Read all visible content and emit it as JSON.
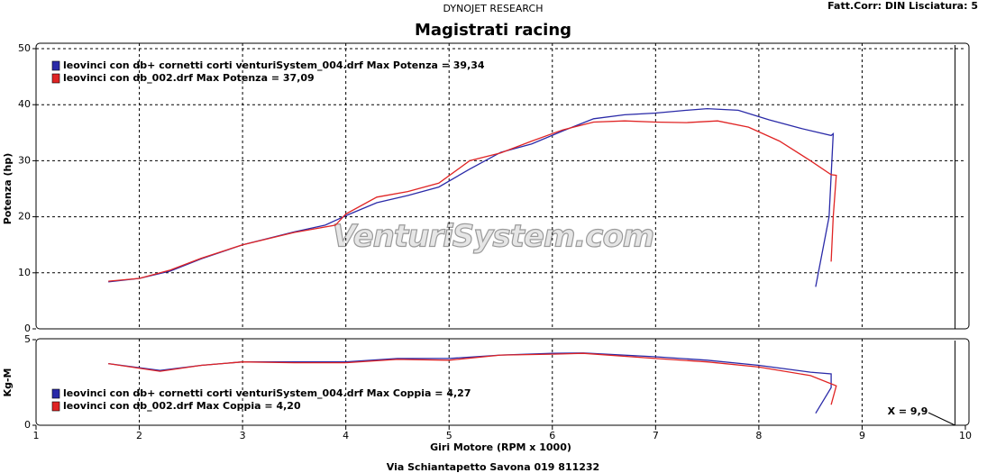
{
  "header": {
    "brand": "DYNOJET RESEARCH",
    "settings": "Fatt.Corr: DIN  Lisciatura: 5",
    "footer": "Via Schiantapetto Savona  019 811232",
    "watermark": "VenturiSystem.com"
  },
  "chart_data": [
    {
      "type": "line",
      "title": "Magistrati racing",
      "y_label": "Potenza (hp)",
      "xlim": [
        1,
        10
      ],
      "xticks": [
        1,
        2,
        3,
        4,
        5,
        6,
        7,
        8,
        9,
        10
      ],
      "ylim": [
        0,
        50
      ],
      "yticks": [
        0,
        10,
        20,
        30,
        40,
        50
      ],
      "grid": true,
      "legend": "upper-left",
      "series": [
        {
          "name": "leovinci con db+ cornetti corti venturiSystem_004.drf Max Potenza = 39,34",
          "color": "#2a2aa8",
          "x": [
            1.7,
            2.0,
            2.3,
            2.6,
            3.0,
            3.5,
            3.8,
            4.0,
            4.3,
            4.6,
            4.9,
            5.2,
            5.5,
            5.8,
            6.1,
            6.4,
            6.7,
            7.0,
            7.3,
            7.5,
            7.8,
            8.1,
            8.4,
            8.7,
            8.72,
            8.68,
            8.55
          ],
          "values": [
            8.4,
            9.0,
            10.3,
            12.5,
            15.0,
            17.3,
            18.5,
            20.2,
            22.5,
            23.8,
            25.3,
            28.5,
            31.5,
            33.0,
            35.3,
            37.5,
            38.2,
            38.5,
            39.0,
            39.3,
            39.0,
            37.3,
            35.8,
            34.5,
            34.8,
            20.0,
            7.5
          ]
        },
        {
          "name": "leovinci con db_002.drf Max Potenza = 37,09",
          "color": "#e02424",
          "x": [
            1.7,
            2.0,
            2.3,
            2.6,
            3.0,
            3.5,
            3.9,
            4.0,
            4.3,
            4.6,
            4.9,
            5.2,
            5.5,
            5.8,
            6.1,
            6.4,
            6.7,
            7.0,
            7.3,
            7.6,
            7.9,
            8.2,
            8.5,
            8.7,
            8.75,
            8.72,
            8.7
          ],
          "values": [
            8.5,
            9.0,
            10.5,
            12.6,
            15.0,
            17.2,
            18.5,
            20.5,
            23.5,
            24.5,
            26.0,
            30.0,
            31.4,
            33.5,
            35.5,
            36.9,
            37.1,
            36.9,
            36.8,
            37.1,
            36.0,
            33.5,
            30.0,
            27.5,
            27.4,
            20.0,
            12.0
          ]
        }
      ]
    },
    {
      "type": "line",
      "y_label": "Kg-M",
      "x_label": "Giri Motore (RPM x 1000)",
      "xlim": [
        1,
        10
      ],
      "xticks": [
        1,
        2,
        3,
        4,
        5,
        6,
        7,
        8,
        9,
        10
      ],
      "ylim": [
        0,
        5
      ],
      "yticks": [
        0,
        5
      ],
      "grid": true,
      "legend": "lower-left",
      "cursor_x": 9.9,
      "cursor_label": "X = 9,9",
      "series": [
        {
          "name": "leovinci con db+ cornetti corti venturiSystem_004.drf Max Coppia = 4,27",
          "color": "#2a2aa8",
          "x": [
            1.7,
            2.2,
            2.6,
            3.0,
            3.5,
            4.0,
            4.5,
            5.0,
            5.5,
            6.0,
            6.3,
            7.0,
            7.5,
            8.0,
            8.5,
            8.7,
            8.7,
            8.55
          ],
          "values": [
            3.6,
            3.2,
            3.5,
            3.7,
            3.7,
            3.7,
            3.9,
            3.9,
            4.1,
            4.2,
            4.22,
            4.0,
            3.8,
            3.5,
            3.1,
            3.0,
            2.2,
            0.7
          ]
        },
        {
          "name": "leovinci con db_002.drf Max Coppia = 4,20",
          "color": "#e02424",
          "x": [
            1.7,
            2.2,
            2.6,
            3.0,
            3.5,
            4.0,
            4.5,
            5.0,
            5.5,
            6.0,
            6.3,
            7.0,
            7.5,
            8.0,
            8.5,
            8.75,
            8.7
          ],
          "values": [
            3.6,
            3.15,
            3.5,
            3.7,
            3.65,
            3.65,
            3.85,
            3.8,
            4.1,
            4.15,
            4.2,
            3.9,
            3.7,
            3.4,
            2.9,
            2.3,
            1.2
          ]
        }
      ]
    }
  ]
}
